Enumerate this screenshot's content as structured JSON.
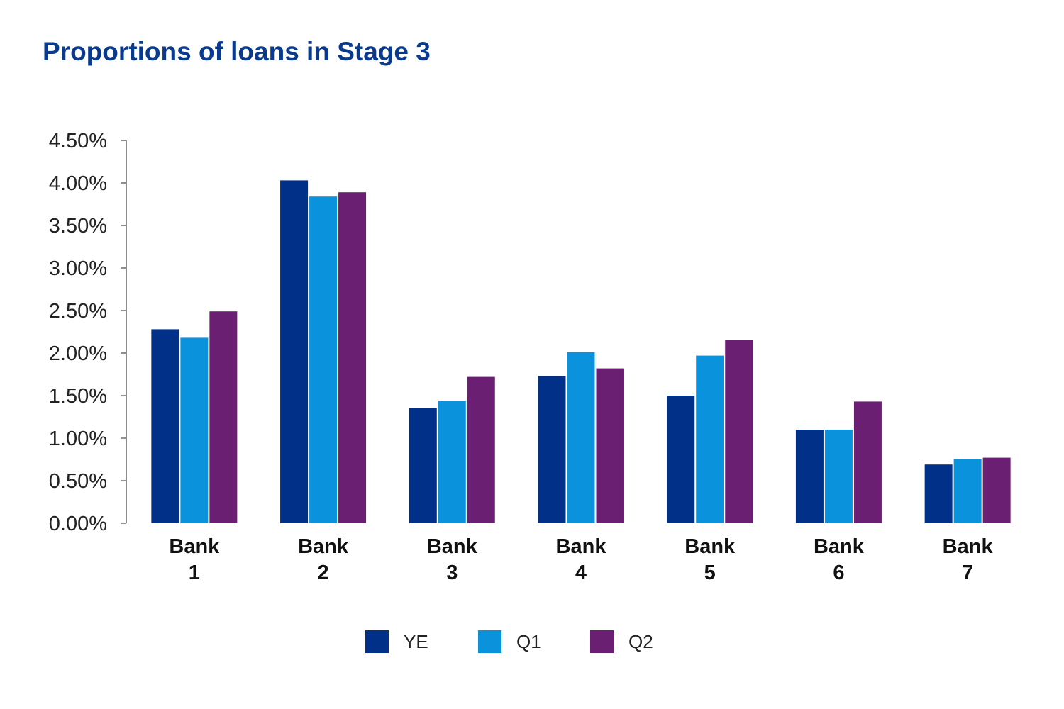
{
  "chart_data": {
    "type": "bar",
    "title": "Proportions of loans in Stage 3",
    "xlabel": "",
    "ylabel": "",
    "categories": [
      [
        "Bank",
        "1"
      ],
      [
        "Bank",
        "2"
      ],
      [
        "Bank",
        "3"
      ],
      [
        "Bank",
        "4"
      ],
      [
        "Bank",
        "5"
      ],
      [
        "Bank",
        "6"
      ],
      [
        "Bank",
        "7"
      ]
    ],
    "ylim": [
      0,
      4.5
    ],
    "yticks": [
      0,
      0.5,
      1.0,
      1.5,
      2.0,
      2.5,
      3.0,
      3.5,
      4.0,
      4.5
    ],
    "ytick_labels": [
      "0.00%",
      "0.50%",
      "1.00%",
      "1.50%",
      "2.00%",
      "2.50%",
      "3.00%",
      "3.50%",
      "4.00%",
      "4.50%"
    ],
    "grid": false,
    "legend_position": "bottom-center",
    "series": [
      {
        "name": "YE",
        "color": "#003087",
        "values": [
          2.28,
          4.03,
          1.35,
          1.73,
          1.5,
          1.1,
          0.69
        ]
      },
      {
        "name": "Q1",
        "color": "#0a93dc",
        "values": [
          2.18,
          3.84,
          1.44,
          2.01,
          1.97,
          1.1,
          0.75
        ]
      },
      {
        "name": "Q2",
        "color": "#6b1f73",
        "values": [
          2.49,
          3.89,
          1.72,
          1.82,
          2.15,
          1.43,
          0.77
        ]
      }
    ]
  }
}
